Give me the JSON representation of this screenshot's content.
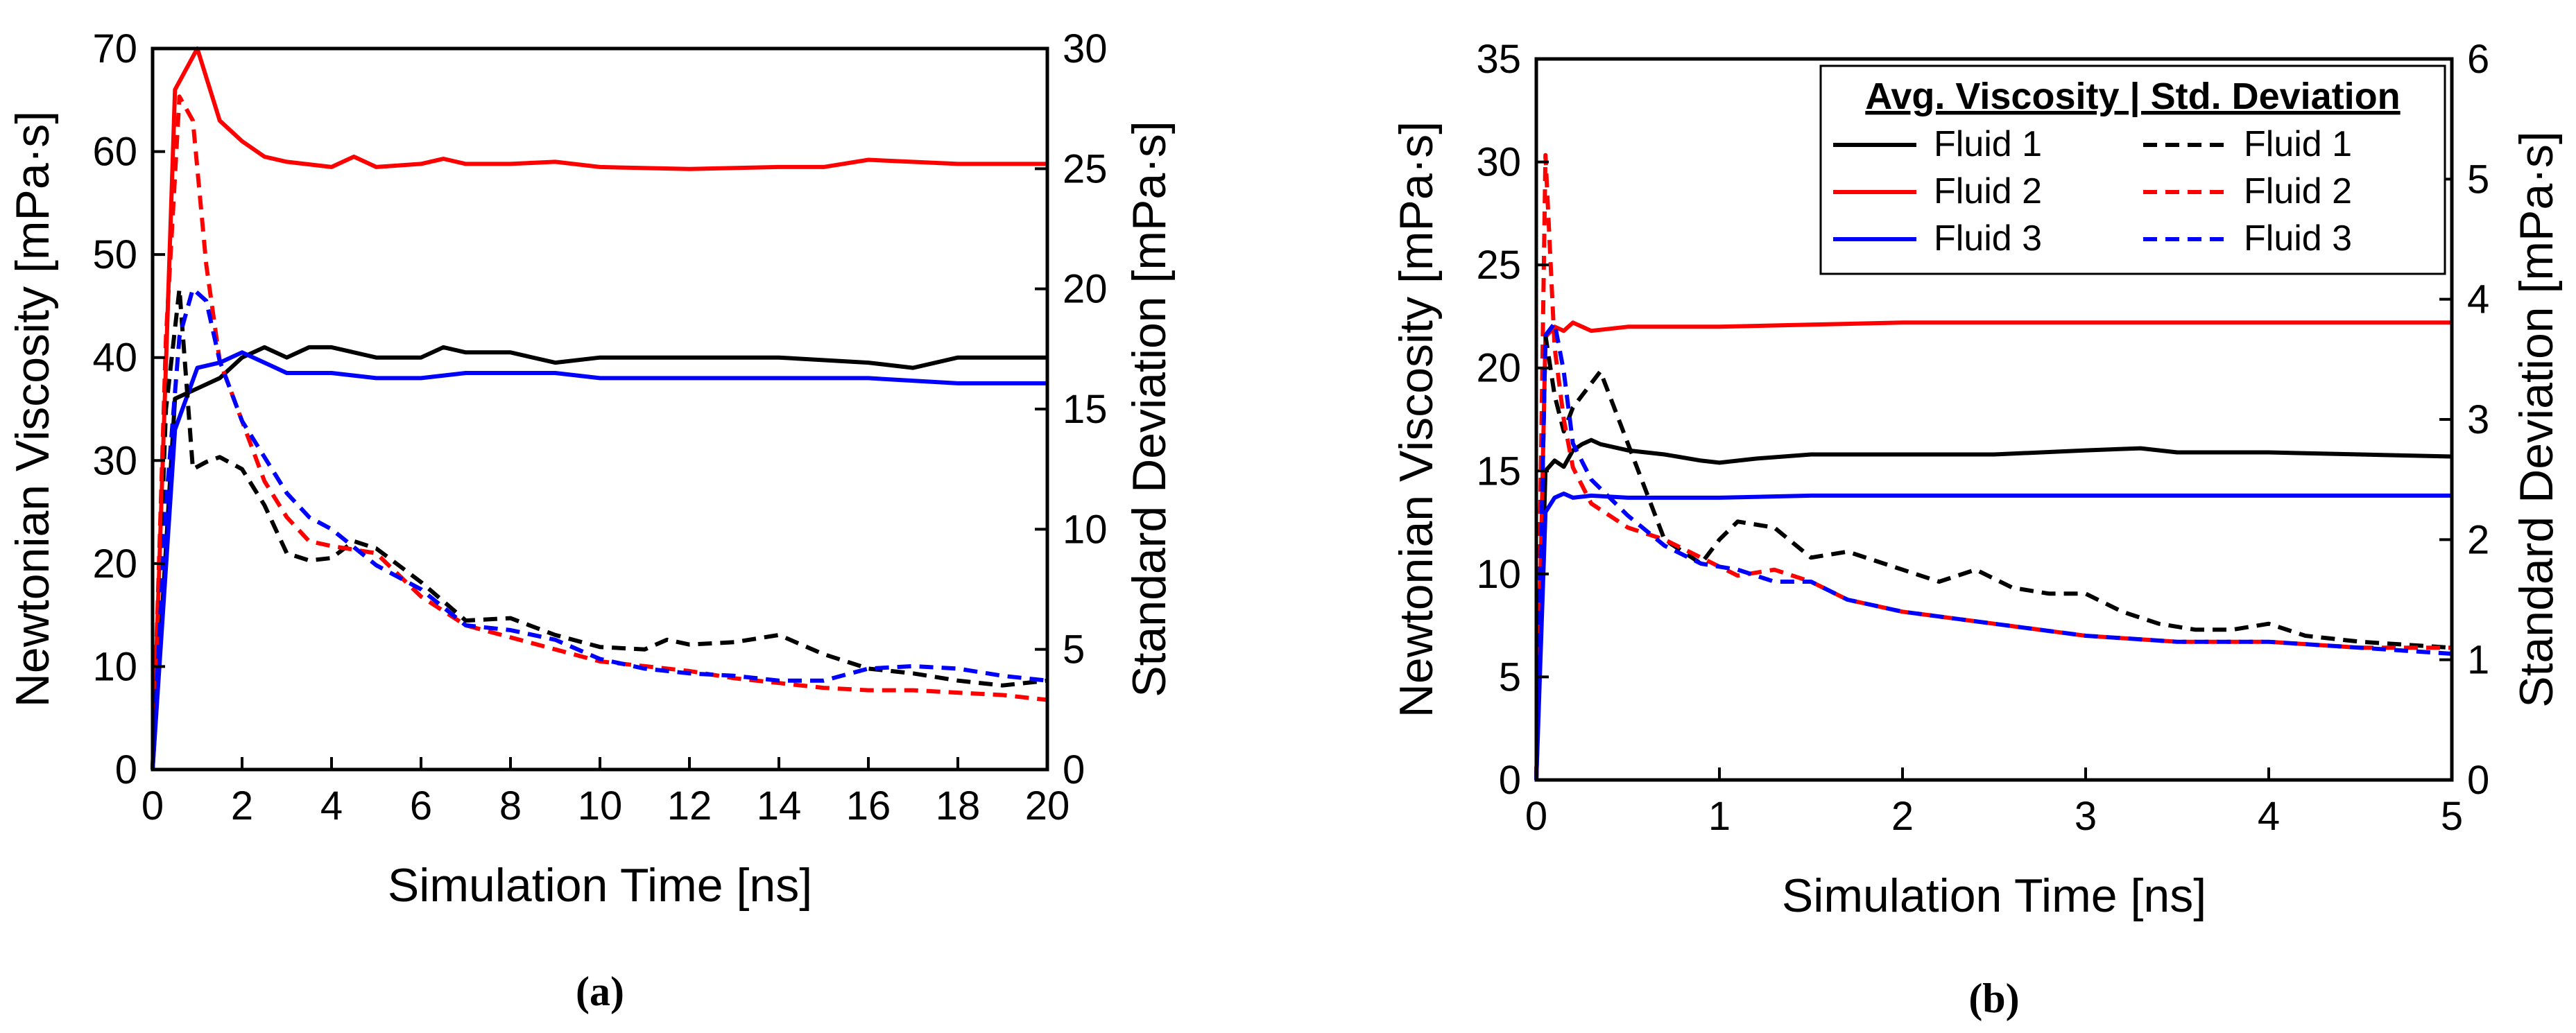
{
  "chart_data": [
    {
      "type": "line",
      "panel_label": "(a)",
      "xlabel": "Simulation Time [ns]",
      "ylabel": "Newtonian Viscosity [mPa·s]",
      "y2label": "Standard Deviation [mPa·s]",
      "xlim": [
        0,
        20
      ],
      "ylim": [
        0,
        70
      ],
      "y2lim": [
        0,
        30
      ],
      "xticks": [
        0,
        2,
        4,
        6,
        8,
        10,
        12,
        14,
        16,
        18,
        20
      ],
      "yticks": [
        0,
        10,
        20,
        30,
        40,
        50,
        60,
        70
      ],
      "y2ticks": [
        0,
        5,
        10,
        15,
        20,
        25,
        30
      ],
      "legend": false,
      "series": [
        {
          "name": "Fluid 1",
          "axis": "left",
          "style": "solid",
          "color": "#000000",
          "x": [
            0,
            0.5,
            1,
            1.5,
            2,
            2.5,
            3,
            3.5,
            4,
            4.5,
            5,
            6,
            6.5,
            7,
            8,
            9,
            10,
            12,
            14,
            16,
            17,
            18,
            19,
            20
          ],
          "y": [
            0,
            36,
            37,
            38,
            40,
            41,
            40,
            41,
            41,
            40.5,
            40,
            40,
            41,
            40.5,
            40.5,
            39.5,
            40,
            40,
            40,
            39.5,
            39,
            40,
            40,
            40
          ]
        },
        {
          "name": "Fluid 2",
          "axis": "left",
          "style": "solid",
          "color": "#ff0000",
          "x": [
            0,
            0.5,
            1,
            1.5,
            2,
            2.5,
            3,
            4,
            4.5,
            5,
            6,
            6.5,
            7,
            8,
            9,
            10,
            12,
            14,
            15,
            16,
            18,
            20
          ],
          "y": [
            0,
            66,
            70,
            63,
            61,
            59.5,
            59,
            58.5,
            59.5,
            58.5,
            58.8,
            59.3,
            58.8,
            58.8,
            59,
            58.5,
            58.3,
            58.5,
            58.5,
            59.2,
            58.8,
            58.8
          ]
        },
        {
          "name": "Fluid 3",
          "axis": "left",
          "style": "solid",
          "color": "#0000ff",
          "x": [
            0,
            0.5,
            1,
            1.5,
            2,
            2.5,
            3,
            4,
            5,
            6,
            7,
            8,
            9,
            10,
            12,
            14,
            16,
            18,
            20
          ],
          "y": [
            0,
            33,
            39,
            39.5,
            40.5,
            39.5,
            38.5,
            38.5,
            38,
            38,
            38.5,
            38.5,
            38.5,
            38,
            38,
            38,
            38,
            37.5,
            37.5
          ]
        },
        {
          "name": "Fluid 1",
          "axis": "right",
          "style": "dashed",
          "color": "#000000",
          "x": [
            0,
            0.3,
            0.6,
            0.9,
            1.2,
            1.5,
            2,
            2.5,
            3,
            3.5,
            4,
            4.5,
            5,
            6,
            7,
            8,
            9,
            10,
            11,
            11.5,
            12,
            13,
            14,
            15,
            16,
            17,
            18,
            19,
            20
          ],
          "y": [
            0,
            15,
            20,
            12.5,
            12.8,
            13,
            12.5,
            11,
            9,
            8.7,
            8.8,
            9.5,
            9.2,
            7.8,
            6.2,
            6.3,
            5.6,
            5.1,
            5.0,
            5.4,
            5.2,
            5.3,
            5.6,
            4.8,
            4.2,
            4.0,
            3.7,
            3.5,
            3.7
          ]
        },
        {
          "name": "Fluid 2",
          "axis": "right",
          "style": "dashed",
          "color": "#ff0000",
          "x": [
            0,
            0.3,
            0.6,
            0.9,
            1.2,
            1.5,
            2,
            2.5,
            3,
            3.5,
            4,
            5,
            6,
            7,
            8,
            9,
            10,
            11,
            12,
            13,
            14,
            15,
            16,
            17,
            18,
            19,
            20
          ],
          "y": [
            0,
            18,
            28,
            27,
            21,
            17,
            14.5,
            12,
            10.5,
            9.5,
            9.3,
            9,
            7.2,
            6,
            5.5,
            5,
            4.5,
            4.3,
            4.1,
            3.8,
            3.6,
            3.4,
            3.3,
            3.3,
            3.2,
            3.1,
            2.9
          ]
        },
        {
          "name": "Fluid 3",
          "axis": "right",
          "style": "dashed",
          "color": "#0000ff",
          "x": [
            0,
            0.3,
            0.6,
            0.9,
            1.2,
            1.5,
            2,
            2.5,
            3,
            3.5,
            4,
            5,
            6,
            7,
            8,
            9,
            10,
            11,
            12,
            13,
            14,
            15,
            16,
            17,
            18,
            19,
            20
          ],
          "y": [
            0,
            11,
            18,
            20,
            19.5,
            17,
            14.5,
            13,
            11.5,
            10.5,
            10,
            8.5,
            7.5,
            6,
            5.8,
            5.4,
            4.6,
            4.2,
            4,
            3.9,
            3.7,
            3.7,
            4.2,
            4.3,
            4.2,
            3.9,
            3.7
          ]
        }
      ]
    },
    {
      "type": "line",
      "panel_label": "(b)",
      "xlabel": "Simulation Time [ns]",
      "ylabel": "Newtonian Viscosity [mPa·s]",
      "y2label": "Standard Deviation [mPa·s]",
      "xlim": [
        0,
        5
      ],
      "ylim": [
        0,
        35
      ],
      "y2lim": [
        0,
        6
      ],
      "xticks": [
        0,
        1,
        2,
        3,
        4,
        5
      ],
      "yticks": [
        0,
        5,
        10,
        15,
        20,
        25,
        30,
        35
      ],
      "y2ticks": [
        0,
        1,
        2,
        3,
        4,
        5,
        6
      ],
      "legend": true,
      "legend_position": "top-right",
      "legend_header": "Avg. Viscosity | Std. Deviation",
      "series": [
        {
          "name": "Fluid 1",
          "axis": "left",
          "style": "solid",
          "color": "#000000",
          "x": [
            0,
            0.05,
            0.1,
            0.15,
            0.2,
            0.25,
            0.3,
            0.35,
            0.5,
            0.7,
            0.9,
            1.0,
            1.2,
            1.5,
            2,
            2.5,
            3,
            3.3,
            3.5,
            4,
            4.5,
            5
          ],
          "y": [
            0,
            15,
            15.5,
            15.2,
            16,
            16.3,
            16.5,
            16.3,
            16,
            15.8,
            15.5,
            15.4,
            15.6,
            15.8,
            15.8,
            15.8,
            16,
            16.1,
            15.9,
            15.9,
            15.8,
            15.7
          ]
        },
        {
          "name": "Fluid 2",
          "axis": "left",
          "style": "solid",
          "color": "#ff0000",
          "x": [
            0,
            0.05,
            0.1,
            0.15,
            0.2,
            0.3,
            0.5,
            1,
            1.5,
            2,
            3,
            4,
            5
          ],
          "y": [
            0,
            21.5,
            22,
            21.8,
            22.2,
            21.8,
            22,
            22,
            22.1,
            22.2,
            22.2,
            22.2,
            22.2
          ]
        },
        {
          "name": "Fluid 3",
          "axis": "left",
          "style": "solid",
          "color": "#0000ff",
          "x": [
            0,
            0.05,
            0.1,
            0.15,
            0.2,
            0.3,
            0.5,
            1,
            1.5,
            2,
            3,
            4,
            5
          ],
          "y": [
            0,
            13,
            13.7,
            13.9,
            13.7,
            13.8,
            13.7,
            13.7,
            13.8,
            13.8,
            13.8,
            13.8,
            13.8
          ]
        },
        {
          "name": "Fluid 1",
          "axis": "right",
          "style": "dashed",
          "color": "#000000",
          "x": [
            0,
            0.05,
            0.1,
            0.15,
            0.2,
            0.3,
            0.35,
            0.5,
            0.7,
            0.9,
            1.0,
            1.1,
            1.3,
            1.5,
            1.7,
            2,
            2.2,
            2.4,
            2.6,
            2.8,
            3,
            3.2,
            3.4,
            3.6,
            3.8,
            4,
            4.2,
            4.5,
            5
          ],
          "y": [
            0,
            3.7,
            3.2,
            2.9,
            3.1,
            3.3,
            3.4,
            2.8,
            2,
            1.8,
            2.0,
            2.15,
            2.1,
            1.85,
            1.9,
            1.75,
            1.65,
            1.75,
            1.6,
            1.55,
            1.55,
            1.4,
            1.3,
            1.25,
            1.25,
            1.3,
            1.2,
            1.15,
            1.1
          ]
        },
        {
          "name": "Fluid 2",
          "axis": "right",
          "style": "dashed",
          "color": "#ff0000",
          "x": [
            0,
            0.05,
            0.1,
            0.15,
            0.2,
            0.3,
            0.5,
            0.7,
            0.9,
            1.1,
            1.3,
            1.5,
            1.7,
            2,
            2.5,
            3,
            3.5,
            4,
            4.5,
            5
          ],
          "y": [
            0,
            5.2,
            3.6,
            3.0,
            2.6,
            2.3,
            2.1,
            2.0,
            1.85,
            1.7,
            1.75,
            1.65,
            1.5,
            1.4,
            1.3,
            1.2,
            1.15,
            1.15,
            1.1,
            1.1
          ]
        },
        {
          "name": "Fluid 3",
          "axis": "right",
          "style": "dashed",
          "color": "#0000ff",
          "x": [
            0,
            0.05,
            0.1,
            0.15,
            0.2,
            0.3,
            0.5,
            0.7,
            0.9,
            1.1,
            1.3,
            1.5,
            1.7,
            2,
            2.5,
            3,
            3.5,
            4,
            4.5,
            5
          ],
          "y": [
            0,
            3.7,
            3.8,
            3.4,
            2.8,
            2.5,
            2.2,
            1.95,
            1.8,
            1.75,
            1.65,
            1.65,
            1.5,
            1.4,
            1.3,
            1.2,
            1.15,
            1.15,
            1.1,
            1.05
          ]
        }
      ]
    }
  ]
}
